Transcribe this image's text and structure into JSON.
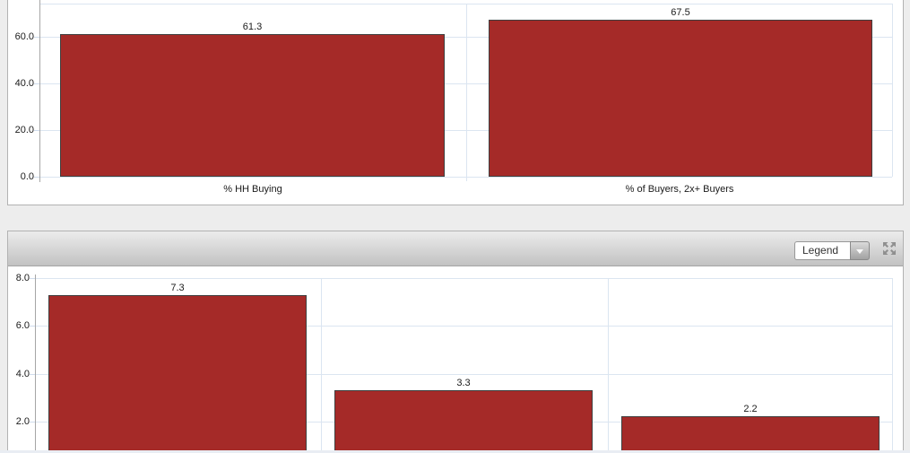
{
  "page": {
    "background_color": "#ededed",
    "panel_background": "#ffffff",
    "gridline_color": "#dbe5f1"
  },
  "top_chart": {
    "chart_data": {
      "type": "bar",
      "categories": [
        "% HH Buying",
        "% of Buyers, 2x+ Buyers"
      ],
      "values": [
        61.3,
        67.5
      ],
      "yticks": [
        "60.0",
        "40.0",
        "20.0",
        "0.0"
      ],
      "ylim": [
        0,
        74.3
      ],
      "grid": "on",
      "legend_position": "none",
      "bar_color": "#a52a28"
    }
  },
  "bottom_chart": {
    "toolbar": {
      "legend_dropdown_label": "Legend",
      "expand_icon": "expand-arrows-icon"
    },
    "chart_data": {
      "type": "bar",
      "values": [
        7.3,
        3.3,
        2.2
      ],
      "yticks": [
        "8.0",
        "6.0",
        "4.0",
        "2.0"
      ],
      "ylim": [
        0,
        8.03
      ],
      "grid": "on",
      "legend_position": "none",
      "bar_color": "#a52a28"
    }
  }
}
